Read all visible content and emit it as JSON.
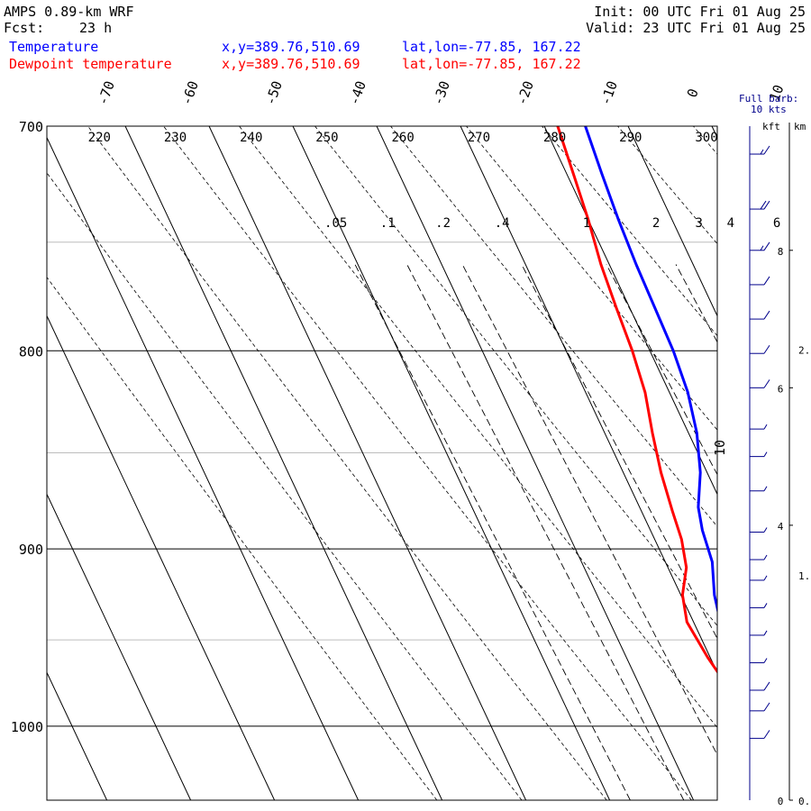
{
  "header": {
    "title": "AMPS 0.89-km WRF",
    "fcst_label": "Fcst:",
    "fcst_value": "23 h",
    "init": "Init: 00 UTC Fri 01 Aug 25",
    "valid": "Valid: 23 UTC Fri 01 Aug 25"
  },
  "legend": [
    {
      "name": "Temperature",
      "xy": "x,y=389.76,510.69",
      "latlon": "lat,lon=-77.85, 167.22",
      "color": "#0000ff"
    },
    {
      "name": "Dewpoint temperature",
      "xy": "x,y=389.76,510.69",
      "latlon": "lat,lon=-77.85, 167.22",
      "color": "#ff0000"
    }
  ],
  "barb_note": {
    "line1": "Full barb:",
    "line2": "10 kts"
  },
  "height_scale": {
    "kft_label": "kft",
    "km_label": "km",
    "kft_ticks": [
      "8",
      "6",
      "4",
      "0"
    ],
    "km_ticks": [
      "2.",
      "1.",
      "0."
    ]
  },
  "chart_data": {
    "type": "line",
    "subtype": "skew-T log-p sounding",
    "y_axis": {
      "variable": "pressure",
      "unit": "hPa",
      "scale": "log",
      "range": [
        1045,
        700
      ],
      "tick_labels": [
        "700",
        "800",
        "900",
        "1000"
      ]
    },
    "isotherm_labels": [
      "-70",
      "-60",
      "-50",
      "-40",
      "-30",
      "-20",
      "-10",
      "0",
      "10"
    ],
    "isotherm_values": [
      -70,
      -60,
      -50,
      -40,
      -30,
      -20,
      -10,
      0,
      10
    ],
    "dry_adiabat_labels": [
      "220",
      "230",
      "240",
      "250",
      "260",
      "270",
      "280",
      "290",
      "300"
    ],
    "dry_adiabat_values": [
      220,
      230,
      240,
      250,
      260,
      270,
      280,
      290,
      300
    ],
    "mixing_ratio_labels": [
      ".05",
      ".1",
      ".2",
      ".4",
      "1",
      "2",
      "3",
      "4",
      "6"
    ],
    "mixing_ratio_values": [
      0.05,
      0.1,
      0.2,
      0.4,
      1,
      2,
      3,
      4,
      6
    ],
    "series": [
      {
        "name": "Temperature",
        "color": "#0000ff",
        "points": [
          {
            "p": 978,
            "t": -23.5
          },
          {
            "p": 965,
            "t": -24.5
          },
          {
            "p": 950,
            "t": -25.8
          },
          {
            "p": 940,
            "t": -26.8
          },
          {
            "p": 925,
            "t": -26.0
          },
          {
            "p": 907,
            "t": -24.4
          },
          {
            "p": 890,
            "t": -23.8
          },
          {
            "p": 878,
            "t": -23.0
          },
          {
            "p": 860,
            "t": -20.8
          },
          {
            "p": 840,
            "t": -19.0
          },
          {
            "p": 820,
            "t": -17.8
          },
          {
            "p": 800,
            "t": -17.2
          },
          {
            "p": 780,
            "t": -17.0
          },
          {
            "p": 760,
            "t": -16.8
          },
          {
            "p": 740,
            "t": -16.4
          },
          {
            "p": 720,
            "t": -15.8
          },
          {
            "p": 700,
            "t": -15.1
          }
        ]
      },
      {
        "name": "Dewpoint temperature",
        "color": "#ff0000",
        "points": [
          {
            "p": 978,
            "t": -29.5
          },
          {
            "p": 960,
            "t": -30.3
          },
          {
            "p": 940,
            "t": -30.8
          },
          {
            "p": 925,
            "t": -29.8
          },
          {
            "p": 910,
            "t": -27.8
          },
          {
            "p": 895,
            "t": -26.8
          },
          {
            "p": 880,
            "t": -26.3
          },
          {
            "p": 860,
            "t": -25.5
          },
          {
            "p": 840,
            "t": -24.3
          },
          {
            "p": 820,
            "t": -22.9
          },
          {
            "p": 800,
            "t": -22.1
          },
          {
            "p": 780,
            "t": -21.6
          },
          {
            "p": 760,
            "t": -21.0
          },
          {
            "p": 740,
            "t": -20.0
          },
          {
            "p": 720,
            "t": -19.2
          },
          {
            "p": 700,
            "t": -18.4
          }
        ]
      }
    ],
    "wind_barbs": {
      "units": "kts",
      "profile_kft": [
        {
          "z": 0.9,
          "speed": 10
        },
        {
          "z": 1.3,
          "speed": 10
        },
        {
          "z": 1.6,
          "speed": 10
        },
        {
          "z": 2.0,
          "speed": 5
        },
        {
          "z": 2.4,
          "speed": 5
        },
        {
          "z": 2.8,
          "speed": 5
        },
        {
          "z": 3.2,
          "speed": 5
        },
        {
          "z": 3.5,
          "speed": 5
        },
        {
          "z": 3.9,
          "speed": 5
        },
        {
          "z": 4.5,
          "speed": 5
        },
        {
          "z": 5.0,
          "speed": 5
        },
        {
          "z": 5.4,
          "speed": 5
        },
        {
          "z": 6.0,
          "speed": 10
        },
        {
          "z": 6.5,
          "speed": 10
        },
        {
          "z": 7.0,
          "speed": 10
        },
        {
          "z": 7.5,
          "speed": 10
        },
        {
          "z": 8.0,
          "speed": 15
        },
        {
          "z": 8.6,
          "speed": 20
        },
        {
          "z": 9.4,
          "speed": 15
        }
      ]
    }
  }
}
